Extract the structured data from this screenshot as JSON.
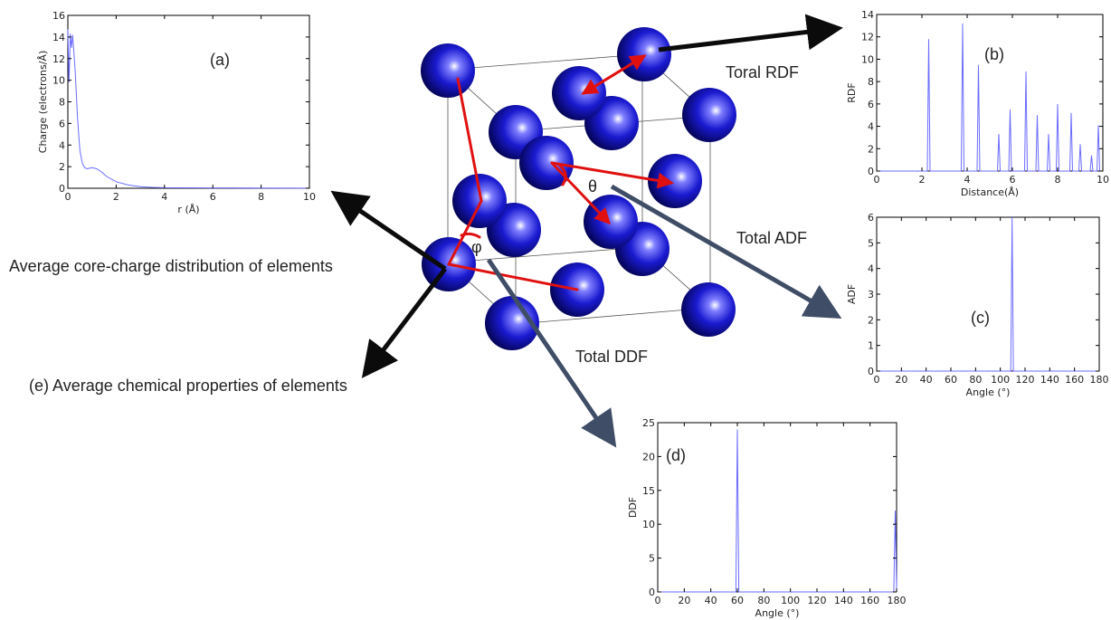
{
  "colors": {
    "line": "#6b6bff",
    "bond": "#e01010",
    "atom": "#1a1ad0",
    "arrow_black": "#0b0b0b",
    "arrow_slate": "#3f4e66"
  },
  "annotations": {
    "rdf": "Toral RDF",
    "adf": "Total ADF",
    "ddf": "Total DDF",
    "core": "Average core-charge distribution of elements",
    "chem": "(e) Average chemical properties of elements",
    "theta": "θ",
    "phi": "φ"
  },
  "chart_data": [
    {
      "id": "a",
      "type": "line",
      "panel_label": "(a)",
      "xlabel": "r (Å)",
      "ylabel": "Charge (electrons/Å)",
      "xlim": [
        0,
        10
      ],
      "ylim": [
        0,
        16
      ],
      "xticks": [
        0,
        2,
        4,
        6,
        8,
        10
      ],
      "yticks": [
        0,
        2,
        4,
        6,
        8,
        10,
        12,
        14,
        16
      ],
      "x": [
        0,
        0.05,
        0.1,
        0.15,
        0.2,
        0.3,
        0.4,
        0.5,
        0.6,
        0.7,
        0.8,
        1.0,
        1.2,
        1.4,
        1.6,
        2.0,
        2.5,
        3.0,
        3.5,
        4.0,
        6.0,
        8.0,
        10.0
      ],
      "y": [
        14.7,
        9.8,
        14.3,
        13.0,
        14.2,
        11.0,
        6.5,
        3.5,
        2.3,
        1.9,
        1.8,
        1.9,
        1.8,
        1.5,
        1.1,
        0.6,
        0.3,
        0.15,
        0.08,
        0.05,
        0.03,
        0.02,
        0.01
      ]
    },
    {
      "id": "b",
      "type": "line",
      "panel_label": "(b)",
      "xlabel": "Distance(Å)",
      "ylabel": "RDF",
      "xlim": [
        0,
        10
      ],
      "ylim": [
        0,
        14
      ],
      "xticks": [
        0,
        2,
        4,
        6,
        8,
        10
      ],
      "yticks": [
        0,
        2,
        4,
        6,
        8,
        10,
        12,
        14
      ],
      "peaks_x": [
        2.3,
        3.8,
        4.5,
        5.4,
        5.9,
        6.6,
        7.1,
        7.6,
        8.0,
        8.6,
        9.0,
        9.5,
        9.8
      ],
      "peaks_y": [
        11.8,
        13.2,
        9.5,
        3.3,
        5.5,
        8.9,
        5.0,
        3.3,
        6.0,
        5.2,
        2.4,
        1.4,
        4.1
      ]
    },
    {
      "id": "c",
      "type": "line",
      "panel_label": "(c)",
      "xlabel": "Angle (°)",
      "ylabel": "ADF",
      "xlim": [
        0,
        180
      ],
      "ylim": [
        0,
        6
      ],
      "xticks": [
        0,
        20,
        40,
        60,
        80,
        100,
        120,
        140,
        160,
        180
      ],
      "yticks": [
        0,
        1,
        2,
        3,
        4,
        5,
        6
      ],
      "peaks_x": [
        109.5
      ],
      "peaks_y": [
        6.0
      ]
    },
    {
      "id": "d",
      "type": "line",
      "panel_label": "(d)",
      "xlabel": "Angle (°)",
      "ylabel": "DDF",
      "xlim": [
        0,
        180
      ],
      "ylim": [
        0,
        25
      ],
      "xticks": [
        0,
        20,
        40,
        60,
        80,
        100,
        120,
        140,
        160,
        180
      ],
      "yticks": [
        0,
        5,
        10,
        15,
        20,
        25
      ],
      "peaks_x": [
        60,
        179
      ],
      "peaks_y": [
        24,
        12
      ]
    }
  ]
}
